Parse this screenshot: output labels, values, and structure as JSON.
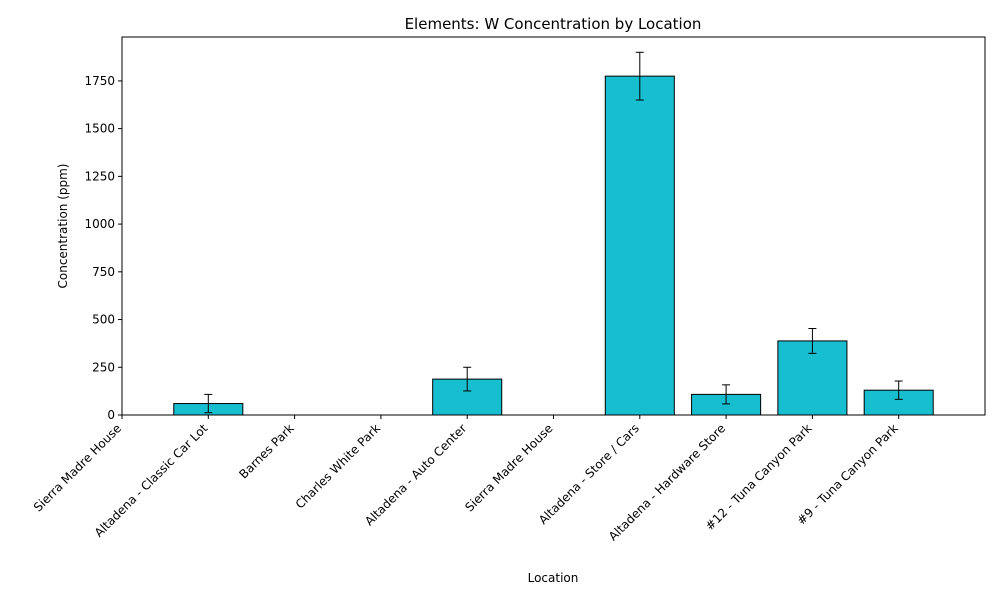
{
  "chart_data": {
    "type": "bar",
    "title": "Elements: W Concentration by Location",
    "xlabel": "Location",
    "ylabel": "Concentration (ppm)",
    "categories": [
      "Sierra Madre House",
      "Altadena - Classic Car Lot",
      "Barnes Park",
      "Charles White Park",
      "Altadena - Auto Center",
      "Sierra Madre House",
      "Altadena - Store / Cars",
      "Altadena - Hardware Store",
      "#12 - Tuna Canyon Park",
      "#9 - Tuna Canyon Park"
    ],
    "values": [
      0,
      60,
      0,
      0,
      188,
      0,
      1775,
      108,
      388,
      130
    ],
    "errors": [
      0,
      48,
      0,
      0,
      62,
      0,
      125,
      50,
      65,
      48
    ],
    "ylim": [
      0,
      1980
    ],
    "yticks": [
      0,
      250,
      500,
      750,
      1000,
      1250,
      1500,
      1750
    ],
    "bar_color": "#17becf",
    "edge_color": "#000000",
    "grid": false,
    "legend": "none"
  }
}
